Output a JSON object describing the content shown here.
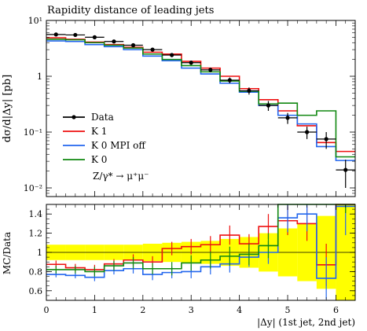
{
  "chart_data": {
    "type": "line",
    "title": "Rapidity distance of leading jets",
    "xlabel": "|Δy| (1st jet, 2nd jet)",
    "main": {
      "ylabel": "dσ/d|Δy| [pb]",
      "yscale": "log",
      "ylim": [
        0.007,
        10
      ],
      "yticks": [
        0.01,
        0.1,
        1,
        10
      ],
      "ytick_labels": [
        "10⁻²",
        "10⁻¹",
        "1",
        "10¹"
      ]
    },
    "ratio": {
      "ylabel": "MC/Data",
      "ylim": [
        0.5,
        1.5
      ],
      "yticks": [
        0.6,
        0.8,
        1.0,
        1.2,
        1.4
      ],
      "ytick_labels": [
        "0.6",
        "0.8",
        "1",
        "1.2",
        "1.4"
      ]
    },
    "xlim": [
      0,
      6.4
    ],
    "xticks": [
      0,
      1,
      2,
      3,
      4,
      5,
      6
    ],
    "xtick_labels": [
      "0",
      "1",
      "2",
      "3",
      "4",
      "5",
      "6"
    ],
    "bin_edges": [
      0,
      0.4,
      0.8,
      1.2,
      1.6,
      2.0,
      2.4,
      2.8,
      3.2,
      3.6,
      4.0,
      4.4,
      4.8,
      5.2,
      5.6,
      6.0,
      6.4
    ],
    "legend_position": "middle-left",
    "legend": [
      "Data",
      "K 1",
      "K 0 MPI off",
      "K 0"
    ],
    "legend_note": "Z/γ* → μ⁺μ⁻",
    "data": {
      "name": "Data",
      "x": [
        0.2,
        0.6,
        1.0,
        1.4,
        1.8,
        2.2,
        2.6,
        3.0,
        3.4,
        3.8,
        4.2,
        4.6,
        5.0,
        5.4,
        5.8,
        6.2
      ],
      "y": [
        5.6,
        5.5,
        5.0,
        4.2,
        3.6,
        3.0,
        2.4,
        1.75,
        1.3,
        0.85,
        0.55,
        0.3,
        0.18,
        0.1,
        0.075,
        0.021
      ],
      "err_low": [
        0.3,
        0.3,
        0.3,
        0.25,
        0.25,
        0.2,
        0.2,
        0.15,
        0.12,
        0.1,
        0.08,
        0.06,
        0.04,
        0.025,
        0.025,
        0.011
      ],
      "err_high": [
        0.3,
        0.3,
        0.3,
        0.25,
        0.25,
        0.2,
        0.2,
        0.15,
        0.12,
        0.1,
        0.08,
        0.06,
        0.04,
        0.025,
        0.025,
        0.011
      ],
      "color": "#000000"
    },
    "series": [
      {
        "name": "K 1",
        "color": "#ee1111",
        "values": [
          4.9,
          4.6,
          4.1,
          3.7,
          3.3,
          2.7,
          2.5,
          1.85,
          1.4,
          1.0,
          0.6,
          0.38,
          0.24,
          0.13,
          0.065,
          0.045
        ],
        "ratio": [
          0.875,
          0.84,
          0.82,
          0.88,
          0.92,
          0.9,
          1.04,
          1.06,
          1.08,
          1.18,
          1.09,
          1.27,
          1.33,
          1.3,
          0.87,
          2.14
        ],
        "ratio_err": [
          0.04,
          0.04,
          0.05,
          0.05,
          0.06,
          0.06,
          0.07,
          0.08,
          0.09,
          0.1,
          0.1,
          0.13,
          0.15,
          0.18,
          0.22,
          0.3
        ]
      },
      {
        "name": "K 0 MPI off",
        "color": "#2266ee",
        "values": [
          4.3,
          4.2,
          3.7,
          3.4,
          3.0,
          2.3,
          1.9,
          1.4,
          1.1,
          0.75,
          0.52,
          0.3,
          0.2,
          0.14,
          0.055,
          0.031
        ],
        "ratio": [
          0.77,
          0.76,
          0.74,
          0.81,
          0.83,
          0.77,
          0.79,
          0.8,
          0.85,
          0.88,
          0.95,
          1.0,
          1.36,
          1.4,
          0.73,
          1.48
        ],
        "ratio_err": [
          0.03,
          0.03,
          0.04,
          0.04,
          0.05,
          0.06,
          0.06,
          0.07,
          0.08,
          0.09,
          0.1,
          0.12,
          0.15,
          0.18,
          0.22,
          0.3
        ]
      },
      {
        "name": "K 0",
        "color": "#118811",
        "values": [
          4.6,
          4.5,
          4.0,
          3.6,
          3.2,
          2.5,
          2.0,
          1.55,
          1.2,
          0.82,
          0.54,
          0.32,
          0.33,
          0.2,
          0.24,
          0.036
        ],
        "ratio": [
          0.82,
          0.82,
          0.8,
          0.86,
          0.89,
          0.83,
          0.83,
          0.89,
          0.92,
          0.96,
          0.98,
          1.07,
          1.83,
          2.0,
          3.2,
          1.71
        ],
        "ratio_err": [
          0.04,
          0.04,
          0.05,
          0.05,
          0.06,
          0.06,
          0.07,
          0.08,
          0.09,
          0.1,
          0.11,
          0.13,
          0.16,
          0.2,
          0.25,
          0.3
        ]
      }
    ],
    "data_uncertainty_band": {
      "color": "#ffff00",
      "rel_err": [
        0.08,
        0.08,
        0.08,
        0.08,
        0.08,
        0.09,
        0.1,
        0.11,
        0.12,
        0.14,
        0.16,
        0.2,
        0.25,
        0.3,
        0.38,
        0.52
      ]
    }
  }
}
